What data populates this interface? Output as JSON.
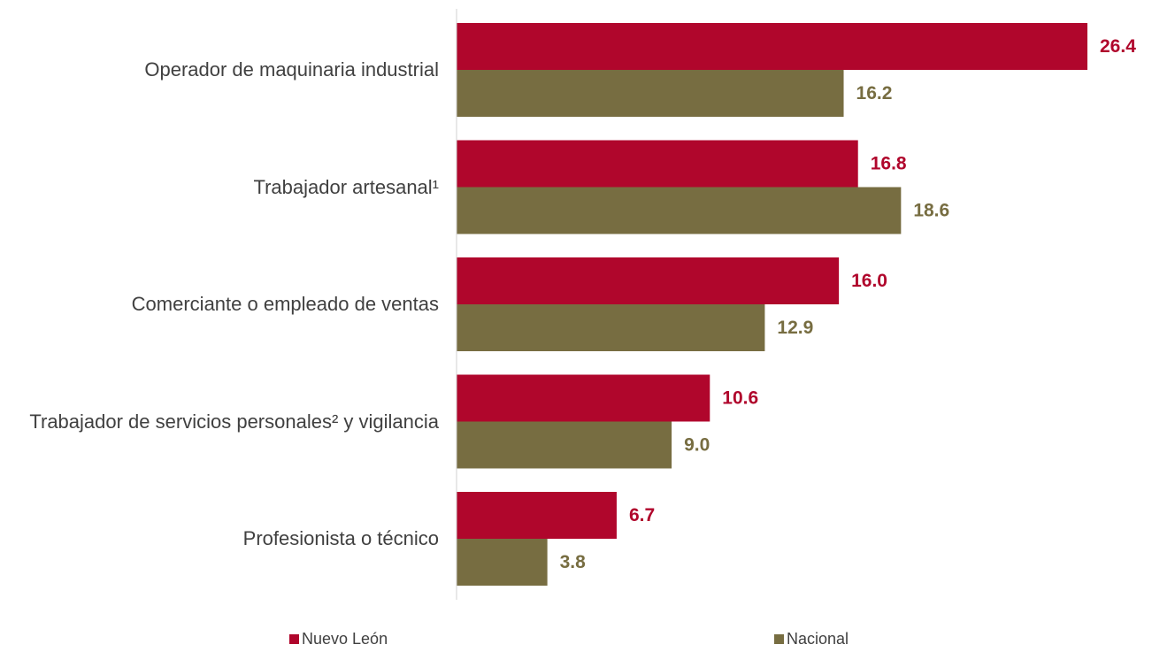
{
  "chart_data": {
    "type": "bar",
    "orientation": "horizontal",
    "categories": [
      "Operador de maquinaria industrial",
      "Trabajador artesanal¹",
      "Comerciante o empleado de ventas",
      "Trabajador de servicios personales² y vigilancia",
      "Profesionista o técnico"
    ],
    "series": [
      {
        "name": "Nuevo León",
        "color": "#b0062c",
        "values": [
          26.4,
          16.8,
          16.0,
          10.6,
          6.7
        ],
        "value_labels": [
          "26.4",
          "16.8",
          "16.0",
          "10.6",
          "6.7"
        ]
      },
      {
        "name": "Nacional",
        "color": "#776d41",
        "values": [
          16.2,
          18.6,
          12.9,
          9.0,
          3.8
        ],
        "value_labels": [
          "16.2",
          "18.6",
          "12.9",
          "9.0",
          "3.8"
        ]
      }
    ]
  }
}
